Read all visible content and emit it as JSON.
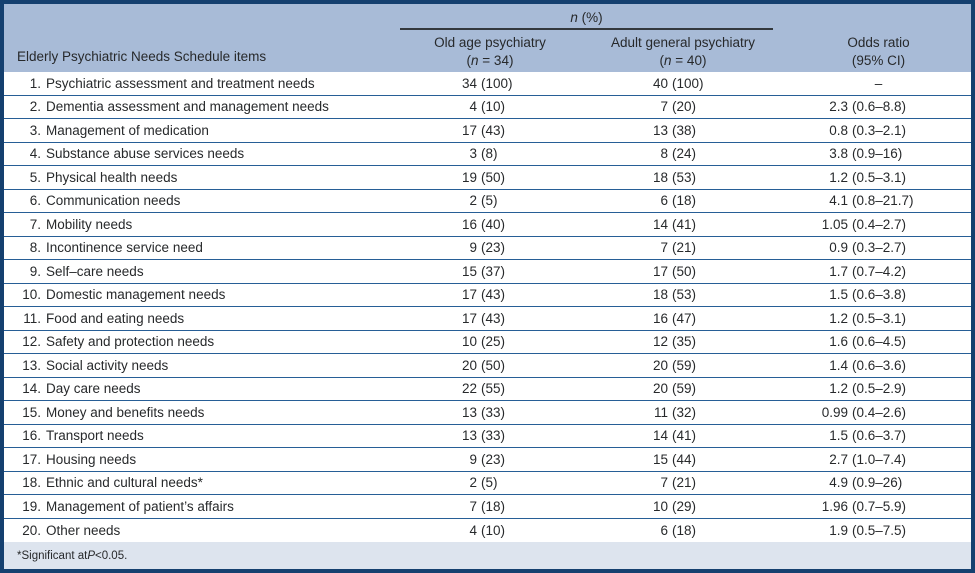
{
  "header": {
    "items_column_title": "Elderly Psychiatric Needs Schedule items",
    "spanner": {
      "italic": "n",
      "rest": " (%)"
    },
    "columns": [
      {
        "title": "Old age psychiatry",
        "sub_pre": "(",
        "sub_italic": "n",
        "sub_post": " = 34)"
      },
      {
        "title": "Adult general psychiatry",
        "sub_pre": "(",
        "sub_italic": "n",
        "sub_post": " = 40)"
      }
    ],
    "odds": {
      "title": "Odds ratio",
      "sub": "(95% CI)"
    }
  },
  "rows": [
    {
      "no": "1.",
      "label": "Psychiatric assessment and treatment needs",
      "old": "34 (100)",
      "adult": "40 (100)",
      "odds": "–"
    },
    {
      "no": "2.",
      "label": "Dementia assessment and management needs",
      "old": "4 (10)",
      "adult": "7 (20)",
      "odds": "2.3 (0.6–8.8)"
    },
    {
      "no": "3.",
      "label": "Management of medication",
      "old": "17 (43)",
      "adult": "13 (38)",
      "odds": "0.8 (0.3–2.1)"
    },
    {
      "no": "4.",
      "label": "Substance abuse services needs",
      "old": "3 (8)",
      "adult": "8 (24)",
      "odds": "3.8 (0.9–16)"
    },
    {
      "no": "5.",
      "label": "Physical health needs",
      "old": "19 (50)",
      "adult": "18 (53)",
      "odds": "1.2 (0.5–3.1)"
    },
    {
      "no": "6.",
      "label": "Communication needs",
      "old": "2 (5)",
      "adult": "6 (18)",
      "odds": "4.1 (0.8–21.7)"
    },
    {
      "no": "7.",
      "label": "Mobility needs",
      "old": "16 (40)",
      "adult": "14 (41)",
      "odds": "1.05 (0.4–2.7)"
    },
    {
      "no": "8.",
      "label": "Incontinence service need",
      "old": "9 (23)",
      "adult": "7 (21)",
      "odds": "0.9 (0.3–2.7)"
    },
    {
      "no": "9.",
      "label": "Self–care needs",
      "old": "15 (37)",
      "adult": "17 (50)",
      "odds": "1.7 (0.7–4.2)"
    },
    {
      "no": "10.",
      "label": "Domestic management needs",
      "old": "17 (43)",
      "adult": "18 (53)",
      "odds": "1.5 (0.6–3.8)"
    },
    {
      "no": "11.",
      "label": "Food and eating needs",
      "old": "17 (43)",
      "adult": "16 (47)",
      "odds": "1.2 (0.5–3.1)"
    },
    {
      "no": "12.",
      "label": "Safety and protection needs",
      "old": "10 (25)",
      "adult": "12 (35)",
      "odds": "1.6 (0.6–4.5)"
    },
    {
      "no": "13.",
      "label": "Social activity needs",
      "old": "20 (50)",
      "adult": "20 (59)",
      "odds": "1.4 (0.6–3.6)"
    },
    {
      "no": "14.",
      "label": "Day care needs",
      "old": "22 (55)",
      "adult": "20 (59)",
      "odds": "1.2 (0.5–2.9)"
    },
    {
      "no": "15.",
      "label": "Money and benefits needs",
      "old": "13 (33)",
      "adult": "11 (32)",
      "odds": "0.99 (0.4–2.6)"
    },
    {
      "no": "16.",
      "label": "Transport needs",
      "old": "13 (33)",
      "adult": "14 (41)",
      "odds": "1.5 (0.6–3.7)"
    },
    {
      "no": "17.",
      "label": "Housing needs",
      "old": "9 (23)",
      "adult": "15 (44)",
      "odds": "2.7 (1.0–7.4)"
    },
    {
      "no": "18.",
      "label": "Ethnic and cultural needs*",
      "old": "2 (5)",
      "adult": "7 (21)",
      "odds": "4.9 (0.9–26)"
    },
    {
      "no": "19.",
      "label": "Management of patient’s affairs",
      "old": "7 (18)",
      "adult": "10 (29)",
      "odds": "1.96 (0.7–5.9)"
    },
    {
      "no": "20.",
      "label": "Other needs",
      "old": "4 (10)",
      "adult": "6 (18)",
      "odds": "1.9 (0.5–7.5)"
    }
  ],
  "footnote": {
    "pre": "*Significant at ",
    "italic": "P",
    "post": " <0.05."
  },
  "colors": {
    "frame": "#15406f",
    "header_bg": "#a8bbd7",
    "foot_bg": "#dde4ee",
    "row_line": "#275e96",
    "spanner_line": "#33383d",
    "text": "#27292b"
  }
}
